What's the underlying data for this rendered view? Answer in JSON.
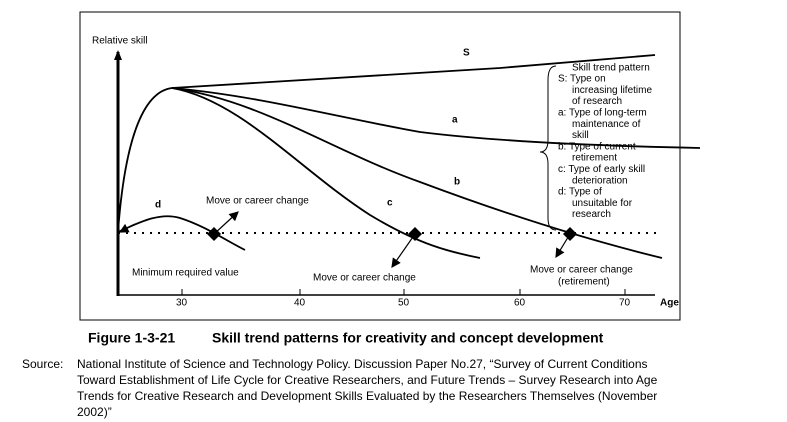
{
  "labels": {
    "y_axis": "Relative skill",
    "x_axis": "Age",
    "s": "S",
    "a": "a",
    "b": "b",
    "c": "c",
    "d": "d",
    "move_1": "Move or career change",
    "minimum": "Minimum required value",
    "move_2": "Move or career change",
    "move_3": "Move or career change",
    "retirement": "(retirement)"
  },
  "x_ticks": [
    "30",
    "40",
    "50",
    "60",
    "70"
  ],
  "legend": {
    "title": "Skill trend pattern",
    "lines": [
      "S: Type on",
      "increasing lifetime",
      "of research",
      "a: Type of long-term",
      "maintenance of",
      "skill",
      "b: Type of current",
      "retirement",
      "c: Type of early skill",
      "deterioration",
      "d: Type of",
      "unsuitable for",
      "research"
    ]
  },
  "caption": {
    "figure": "Figure 1-3-21",
    "title": "Skill trend patterns for creativity and concept development"
  },
  "source": {
    "label": "Source:",
    "lines": [
      "National Institute of Science and Technology Policy. Discussion Paper No.27, “Survey of Current Conditions",
      "Toward Establishment of Life Cycle for Creative Researchers, and Future Trends – Survey Research into Age",
      "Trends for Creative Research and Development Skills Evaluated by the Researchers Themselves (November",
      "2002)”"
    ]
  }
}
